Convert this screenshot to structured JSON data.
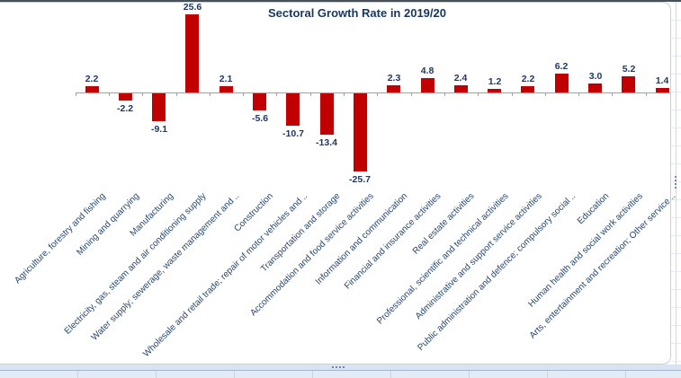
{
  "chart_data": {
    "type": "bar",
    "title": "Sectoral Growth Rate in 2019/20",
    "categories": [
      "Agriculture, forestry and fishing",
      "Mining and quarrying",
      "Manufacturing",
      "Electricity, gas, steam and air conditioning supply",
      "Water supply; sewerage, waste management and ..",
      "Construction",
      "Wholesale and retail trade; repair of motor vehicles and ..",
      "Transportation and storage",
      "Accommodation and food service activities",
      "Information and communication",
      "Financial and insurance activities",
      "Real estate activities",
      "Professional, scientific and technical activities",
      "Administrative and support service activities",
      "Public administration and defence; compulsory social ..",
      "Education",
      "Human health and social work activities",
      "Arts, entertainment and recreation; Other service .."
    ],
    "values": [
      2.2,
      -2.2,
      -9.1,
      25.6,
      2.1,
      -5.6,
      -10.7,
      -13.4,
      -25.7,
      2.3,
      4.8,
      2.4,
      1.2,
      2.2,
      6.2,
      3.0,
      5.2,
      1.4
    ],
    "value_labels": [
      "2.2",
      "-2.2",
      "-9.1",
      "25.6",
      "2.1",
      "-5.6",
      "-10.7",
      "-13.4",
      "-25.7",
      "2.3",
      "4.8",
      "2.4",
      "1.2",
      "2.2",
      "6.2",
      "3.0",
      "5.2",
      "1.4"
    ],
    "xlabel": "",
    "ylabel": "",
    "ylim": [
      -26,
      26
    ],
    "grid": false,
    "legend": false,
    "data_labels_shown": true,
    "colors": {
      "bar": "#c00000",
      "title": "#17375e",
      "value_label": "#1f3864",
      "category_label": "#24466e",
      "axis": "#9aa0a6"
    }
  }
}
